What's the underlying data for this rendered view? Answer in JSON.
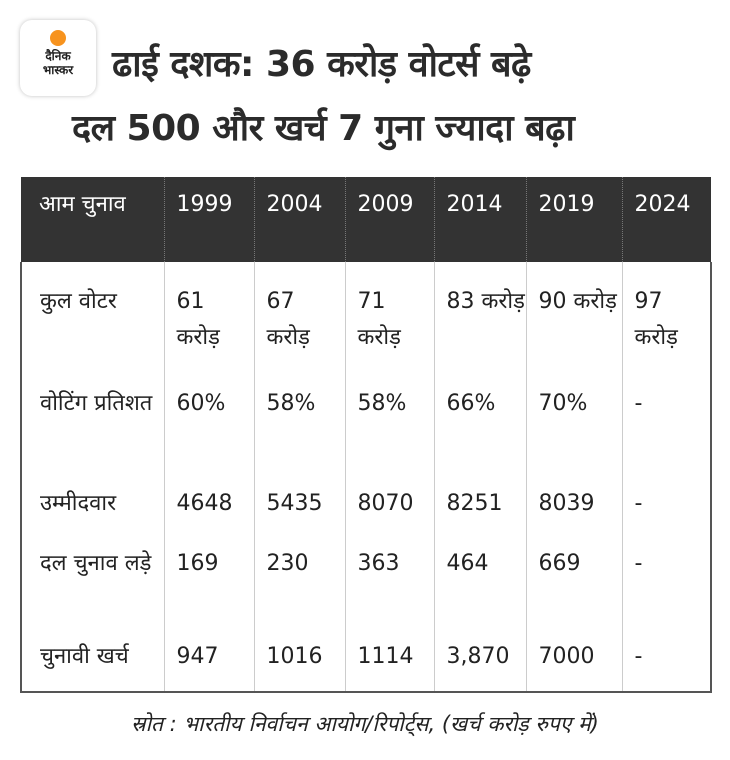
{
  "logo": {
    "line1": "दैनिक",
    "line2": "भास्कर",
    "accent": "#f7931e"
  },
  "title": {
    "line1": "ढाई दशक: 36 करोड़ वोटर्स बढ़े",
    "line2": "दल 500 और खर्च 7 गुना ज्यादा बढ़ा"
  },
  "table": {
    "header": [
      "आम चुनाव",
      "1999",
      "2004",
      "2009",
      "2014",
      "2019",
      "2024"
    ],
    "rows": [
      [
        "कुल वोटर",
        "61 करोड़",
        "67 करोड़",
        "71 करोड़",
        "83 करोड़",
        "90 करोड़",
        "97 करोड़"
      ],
      [
        "वोटिंग प्रतिशत",
        "60%",
        "58%",
        "58%",
        "66%",
        "70%",
        "-"
      ],
      [
        "उम्मीदवार",
        "4648",
        "5435",
        "8070",
        "8251",
        "8039",
        "-"
      ],
      [
        "दल चुनाव लड़े",
        "169",
        "230",
        "363",
        "464",
        "669",
        "-"
      ],
      [
        "चुनावी खर्च",
        "947",
        "1016",
        "1114",
        "3,870",
        "7000",
        "-"
      ]
    ]
  },
  "source": "स्रोत : भारतीय निर्वाचन आयोग/रिपोर्ट्स, (खर्च करोड़ रुपए में)"
}
